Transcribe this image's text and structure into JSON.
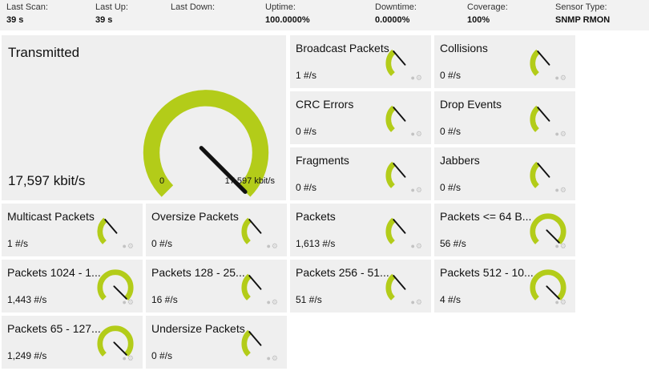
{
  "status": {
    "last_scan": {
      "label": "Last Scan:",
      "value": "39 s"
    },
    "last_up": {
      "label": "Last Up:",
      "value": "39 s"
    },
    "last_down": {
      "label": "Last Down:",
      "value": ""
    },
    "uptime": {
      "label": "Uptime:",
      "value": "100.0000%"
    },
    "downtime": {
      "label": "Downtime:",
      "value": "0.0000%"
    },
    "coverage": {
      "label": "Coverage:",
      "value": "100%"
    },
    "sensor_type": {
      "label": "Sensor Type:",
      "value": "SNMP RMON"
    }
  },
  "main_channel": {
    "title": "Transmitted",
    "value": "17,597 kbit/s",
    "min_label": "0",
    "max_label": "17,597 kbit/s",
    "fraction": 1.0
  },
  "channels": [
    {
      "name": "Broadcast Packets",
      "value": "1 #/s",
      "fraction": 0.35
    },
    {
      "name": "Collisions",
      "value": "0 #/s",
      "fraction": 0.35
    },
    {
      "name": "CRC Errors",
      "value": "0 #/s",
      "fraction": 0.35
    },
    {
      "name": "Drop Events",
      "value": "0 #/s",
      "fraction": 0.35
    },
    {
      "name": "Fragments",
      "value": "0 #/s",
      "fraction": 0.35
    },
    {
      "name": "Jabbers",
      "value": "0 #/s",
      "fraction": 0.35
    },
    {
      "name": "Multicast Packets",
      "value": "1 #/s",
      "fraction": 0.35
    },
    {
      "name": "Oversize Packets",
      "value": "0 #/s",
      "fraction": 0.35
    },
    {
      "name": "Packets",
      "value": "1,613 #/s",
      "fraction": 0.35
    },
    {
      "name": "Packets <= 64 B...",
      "value": "56 #/s",
      "fraction": 1.0
    },
    {
      "name": "Packets 1024 - 1...",
      "value": "1,443 #/s",
      "fraction": 1.0
    },
    {
      "name": "Packets 128 - 25...",
      "value": "16 #/s",
      "fraction": 0.35
    },
    {
      "name": "Packets 256 - 51...",
      "value": "51 #/s",
      "fraction": 0.35
    },
    {
      "name": "Packets 512 - 10...",
      "value": "4 #/s",
      "fraction": 1.0
    },
    {
      "name": "Packets 65 - 127...",
      "value": "1,249 #/s",
      "fraction": 1.0
    },
    {
      "name": "Undersize Packets",
      "value": "0 #/s",
      "fraction": 0.35
    }
  ],
  "colors": {
    "gauge_fill": "#b3cc19",
    "needle": "#111111",
    "tile_bg": "#efefef"
  },
  "icons": {
    "tile_actions": "pin-and-gear-icons"
  }
}
